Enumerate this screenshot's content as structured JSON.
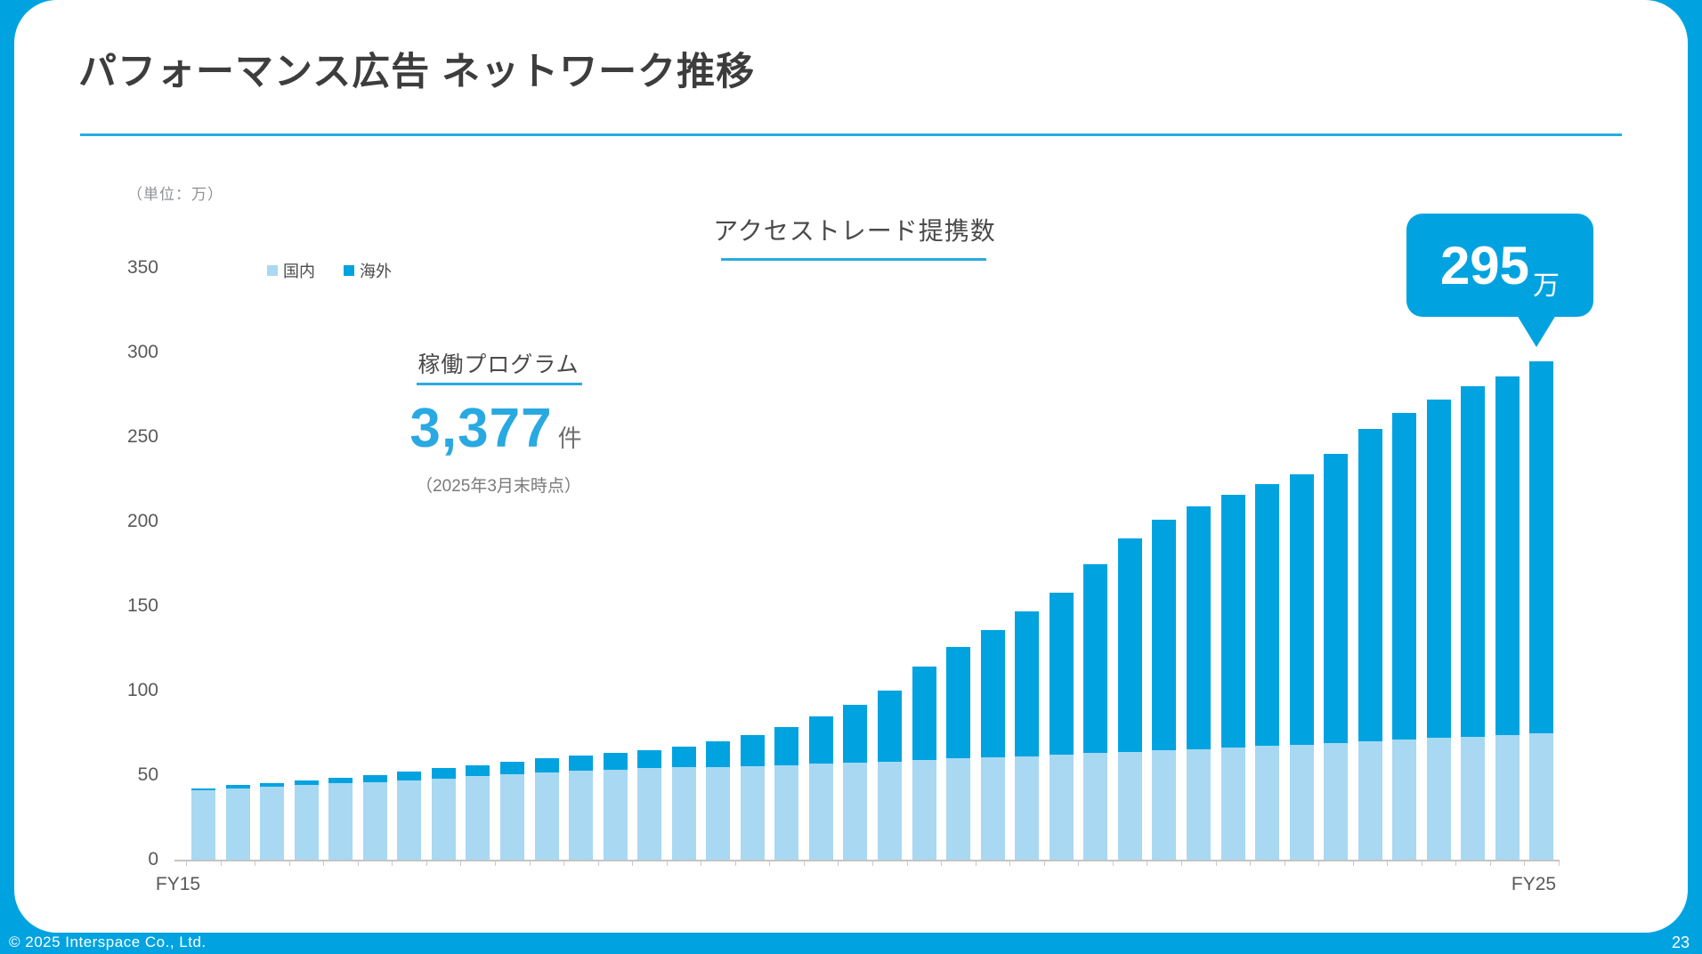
{
  "slide": {
    "title": "パフォーマンス広告 ネットワーク推移",
    "footer": {
      "copyright": "© 2025 Interspace Co., Ltd.",
      "page_number": "23"
    }
  },
  "chart": {
    "unit_label": "（単位：万）",
    "title": "アクセストレード提携数",
    "legend": [
      {
        "label": "国内",
        "color": "#a9d8f3"
      },
      {
        "label": "海外",
        "color": "#00a3e0"
      }
    ],
    "callout": {
      "value": "295",
      "unit": "万"
    },
    "program_box": {
      "label": "稼働プログラム",
      "value": "3,377",
      "unit": "件",
      "note": "（2025年3月末時点）"
    },
    "x_axis": {
      "first_label": "FY15",
      "last_label": "FY25"
    }
  },
  "colors": {
    "accent_blue": "#00a3e0",
    "light_blue": "#a9d8f3",
    "underline_blue": "#29abe2",
    "value_blue": "#29a9e1"
  },
  "chart_data": {
    "type": "bar",
    "stacked": true,
    "title": "アクセストレード提携数",
    "unit": "万",
    "x_axis_visible_labels": [
      "FY15",
      "FY25"
    ],
    "n_bars": 40,
    "ylim": [
      0,
      350
    ],
    "yticks": [
      0,
      50,
      100,
      150,
      200,
      250,
      300,
      350
    ],
    "grid": false,
    "legend_position": "top-left",
    "annotation": {
      "bar_index": 39,
      "text": "295万"
    },
    "series": [
      {
        "name": "国内",
        "color": "#a9d8f3",
        "values": [
          41,
          42,
          43,
          44,
          45,
          46,
          47,
          48,
          49.5,
          50.5,
          51.5,
          52.5,
          53,
          54,
          54.5,
          55,
          55.5,
          56,
          57,
          57.5,
          58,
          59,
          60,
          60.5,
          61,
          62,
          63,
          63.5,
          64.5,
          65.5,
          66.5,
          67.5,
          68,
          69,
          70,
          71,
          72,
          72.5,
          73.5,
          74.5
        ]
      },
      {
        "name": "海外",
        "color": "#00a3e0",
        "values": [
          1,
          2,
          2.5,
          3,
          3.5,
          4,
          5,
          6,
          6.5,
          7.5,
          8.5,
          9,
          10,
          11,
          12.5,
          15,
          18,
          22.5,
          27.5,
          34,
          42,
          55,
          66,
          75.5,
          86,
          96,
          112,
          126.5,
          136.5,
          143.5,
          149.5,
          154.5,
          160,
          171,
          185,
          193,
          200,
          207.5,
          212.5,
          220.5
        ]
      }
    ],
    "totals": [
      42,
      44,
      45.5,
      47,
      48.5,
      50,
      52,
      54,
      56,
      58,
      60,
      61.5,
      63,
      65,
      67,
      70,
      73.5,
      78.5,
      84.5,
      91.5,
      100,
      114,
      126,
      136,
      147,
      158,
      175,
      190,
      201,
      209,
      216,
      222,
      228,
      240,
      255,
      264,
      272,
      280,
      286,
      295
    ]
  }
}
